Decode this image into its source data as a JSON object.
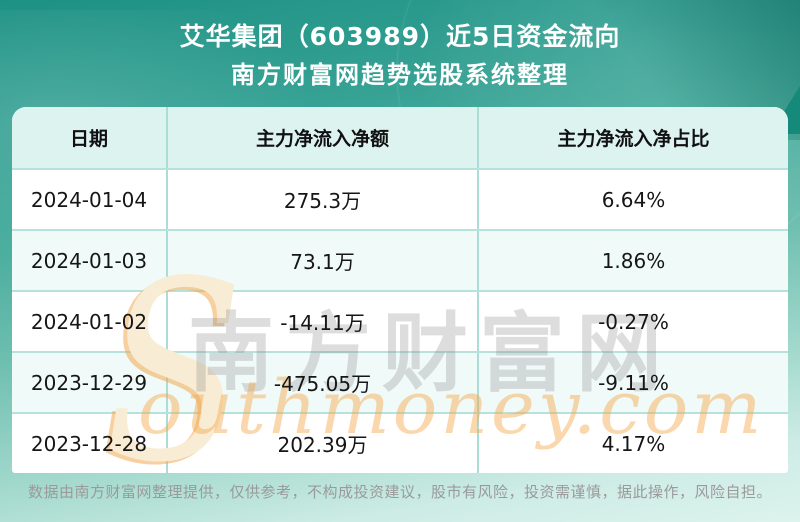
{
  "header": {
    "title_line1": "艾华集团（603989）近5日资金流向",
    "title_line2": "南方财富网趋势选股系统整理"
  },
  "table": {
    "columns": [
      "日期",
      "主力净流入净额",
      "主力净流入净占比"
    ],
    "rows": [
      {
        "date": "2024-01-04",
        "net_inflow": "275.3万",
        "net_inflow_pct": "6.64%"
      },
      {
        "date": "2024-01-03",
        "net_inflow": "73.1万",
        "net_inflow_pct": "1.86%"
      },
      {
        "date": "2024-01-02",
        "net_inflow": "-14.11万",
        "net_inflow_pct": "-0.27%"
      },
      {
        "date": "2023-12-29",
        "net_inflow": "-475.05万",
        "net_inflow_pct": "-9.11%"
      },
      {
        "date": "2023-12-28",
        "net_inflow": "202.39万",
        "net_inflow_pct": "4.17%"
      }
    ]
  },
  "watermark": {
    "s": "S",
    "cjk": "南方财富网",
    "latin": "outhmoney.com"
  },
  "footer": {
    "disclaimer": "数据由南方财富网整理提供，仅供参考，不构成投资建议，股市有风险，投资需谨慎，据此操作，风险自担。"
  },
  "colors": {
    "background_teal_top": "#1d9184",
    "background_teal_bottom": "#ddf3ed",
    "table_header_bg": "#ddf3f0",
    "row_alt_bg": "#f0faf8",
    "grid_line": "#abdcd6",
    "title_text": "#ffffff",
    "cell_text": "#161616",
    "footer_text": "#9a9a9a",
    "watermark_orange": "#f5a646",
    "watermark_gray": "#c9c9c9"
  },
  "chart_data": {
    "type": "table",
    "title": "艾华集团（603989）近5日资金流向",
    "subtitle": "南方财富网趋势选股系统整理",
    "columns": [
      "日期",
      "主力净流入净额",
      "主力净流入净占比"
    ],
    "rows": [
      [
        "2024-01-04",
        "275.3万",
        "6.64%"
      ],
      [
        "2024-01-03",
        "73.1万",
        "1.86%"
      ],
      [
        "2024-01-02",
        "-14.11万",
        "-0.27%"
      ],
      [
        "2023-12-29",
        "-475.05万",
        "-9.11%"
      ],
      [
        "2023-12-28",
        "202.39万",
        "4.17%"
      ]
    ],
    "numeric": {
      "dates": [
        "2024-01-04",
        "2024-01-03",
        "2024-01-02",
        "2023-12-29",
        "2023-12-28"
      ],
      "main_net_inflow_wan": [
        275.3,
        73.1,
        -14.11,
        -475.05,
        202.39
      ],
      "main_net_inflow_pct": [
        6.64,
        1.86,
        -0.27,
        -9.11,
        4.17
      ]
    }
  }
}
